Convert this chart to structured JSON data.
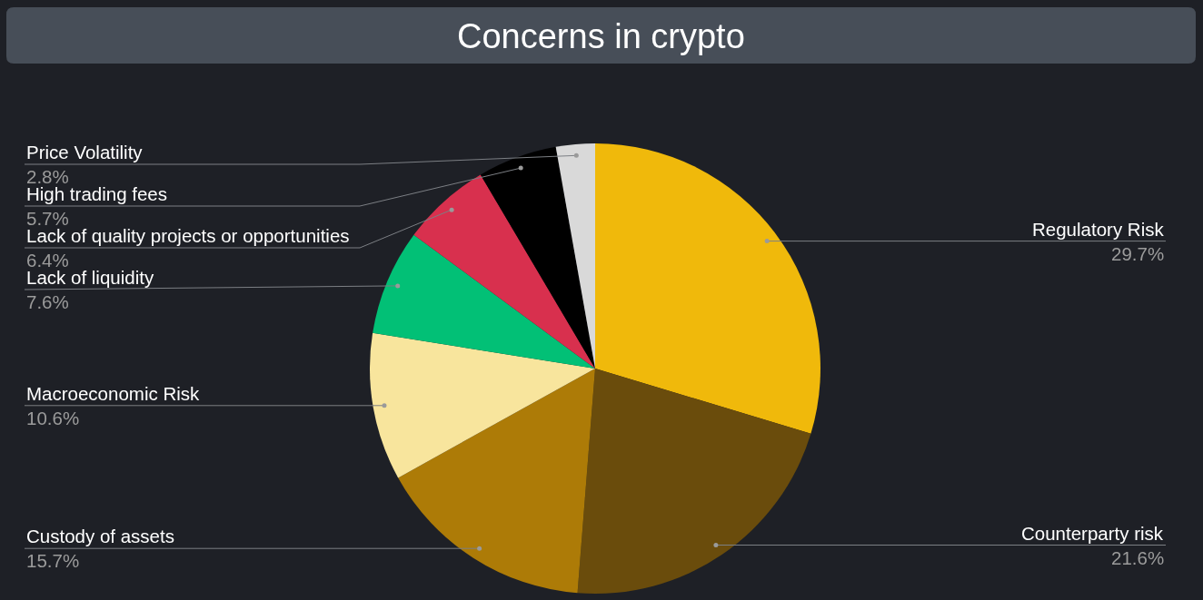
{
  "chart_data": {
    "type": "pie",
    "title": "Concerns in crypto",
    "categories": [
      "Regulatory Risk",
      "Counterparty risk",
      "Custody of assets",
      "Macroeconomic Risk",
      "Lack of liquidity",
      "Lack of quality projects or opportunities",
      "High trading fees",
      "Price Volatility"
    ],
    "values": [
      29.7,
      21.6,
      15.7,
      10.6,
      7.6,
      6.4,
      5.7,
      2.8
    ],
    "colors": [
      "#f0b90b",
      "#6a4c0c",
      "#ad7b07",
      "#f8e59d",
      "#02c076",
      "#d8304e",
      "#000000",
      "#d9d9d9"
    ],
    "value_labels": [
      "29.7%",
      "21.6%",
      "15.7%",
      "10.6%",
      "7.6%",
      "6.4%",
      "5.7%",
      "2.8%"
    ]
  }
}
